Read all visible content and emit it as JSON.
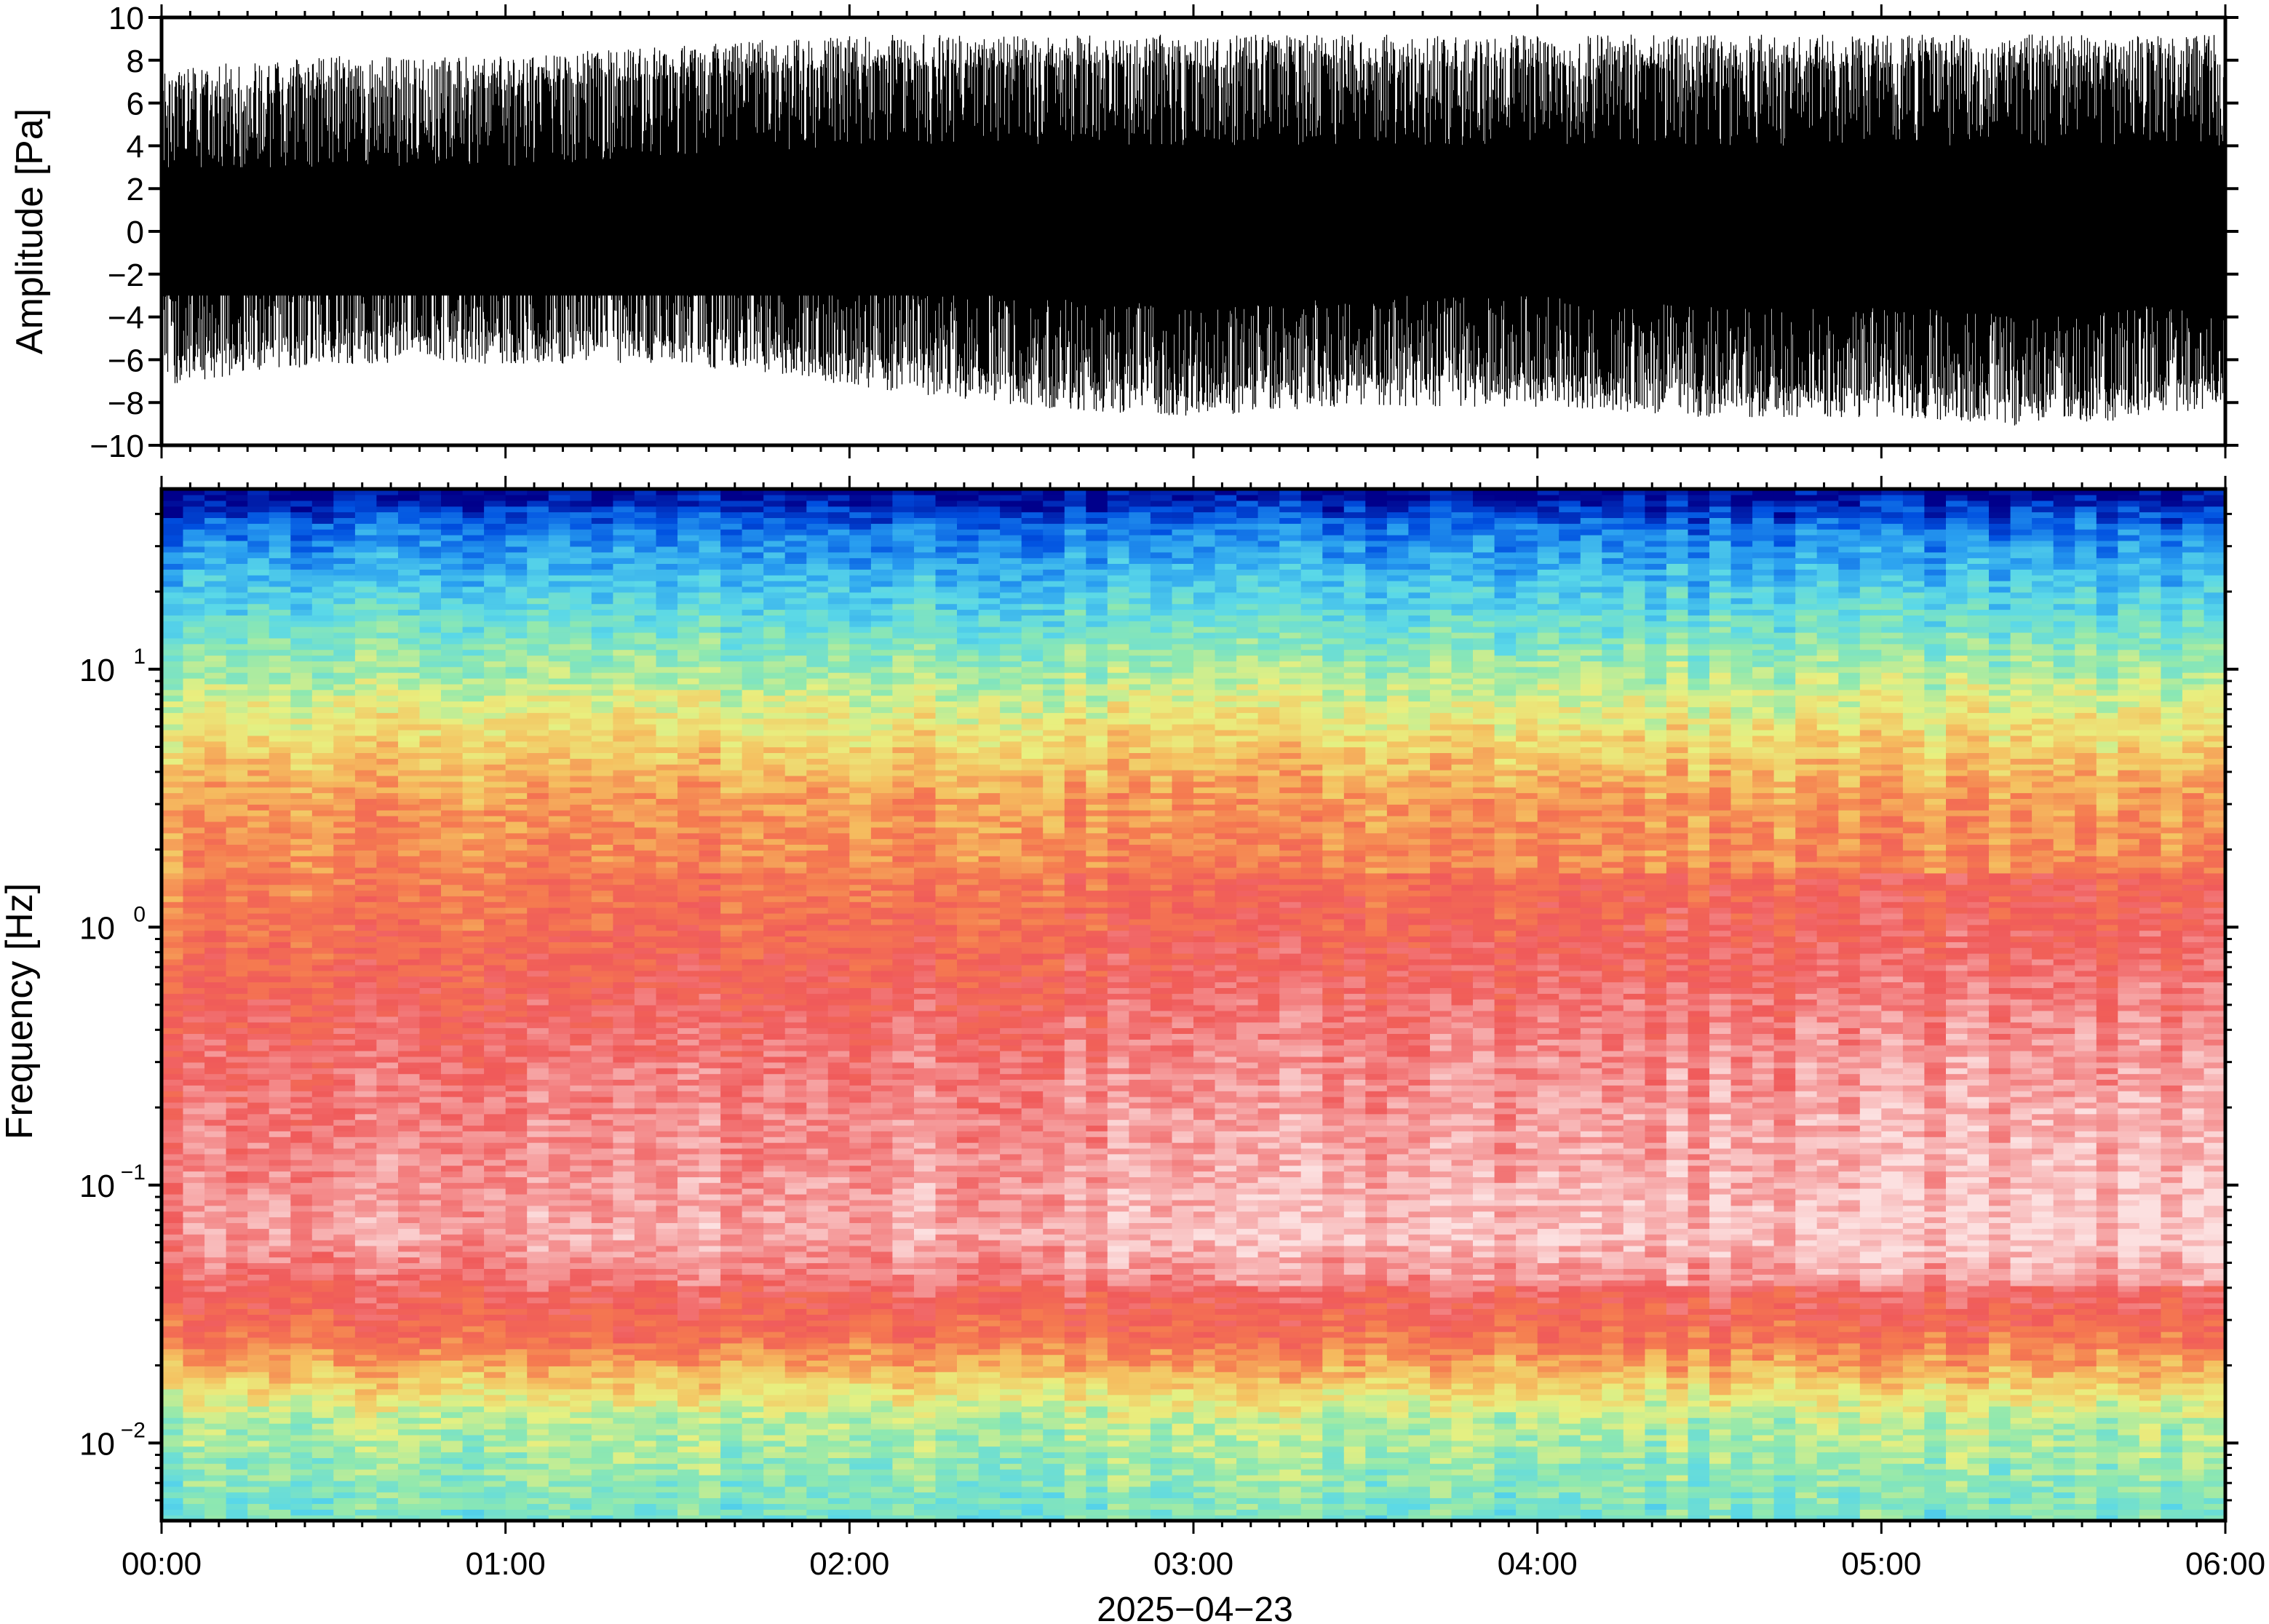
{
  "chart_data": [
    {
      "type": "line",
      "panel": "waveform",
      "ylabel": "Amplitude [Pa]",
      "ylim": [
        -10,
        10
      ],
      "yticks": [
        -10,
        -8,
        -6,
        -4,
        -2,
        0,
        2,
        4,
        6,
        8,
        10
      ],
      "ytick_labels": [
        "−10",
        "−8",
        "−6",
        "−4",
        "−2",
        "0",
        "2",
        "4",
        "6",
        "8",
        "10"
      ],
      "xlim_hours": [
        0,
        6
      ],
      "series": [
        {
          "envelope_upper_hours": [
            0,
            0.5,
            1,
            1.5,
            2,
            2.5,
            3,
            3.5,
            4,
            4.5,
            5,
            5.5,
            6
          ],
          "envelope_upper_pa": [
            8.5,
            9,
            9,
            9.5,
            10,
            10,
            10,
            10,
            10,
            10,
            10,
            10,
            10
          ],
          "envelope_lower_pa": [
            -8,
            -7,
            -7,
            -7,
            -8,
            -9,
            -9.5,
            -9,
            -9,
            -9.5,
            -9.5,
            -10,
            -9
          ]
        }
      ],
      "color": "#000000"
    },
    {
      "type": "heatmap",
      "panel": "spectrogram",
      "ylabel": "Frequency [Hz]",
      "yscale": "log",
      "ylim": [
        0.005,
        50
      ],
      "yticks": [
        0.01,
        0.1,
        1,
        10
      ],
      "ytick_labels": [
        {
          "base": "10",
          "exp": "−2"
        },
        {
          "base": "10",
          "exp": "−1"
        },
        {
          "base": "10",
          "exp": "0"
        },
        {
          "base": "10",
          "exp": "1"
        }
      ],
      "xlabel": "2025−04−23",
      "xticks_hours": [
        0,
        1,
        2,
        3,
        4,
        5,
        6
      ],
      "xtick_labels": [
        "00:00",
        "01:00",
        "02:00",
        "03:00",
        "04:00",
        "05:00",
        "06:00"
      ],
      "colormap": [
        "#00008b",
        "#0050e0",
        "#2aa0f0",
        "#5ad8e8",
        "#8ee8b0",
        "#e8f080",
        "#f5c060",
        "#f57a50",
        "#f05a5a",
        "#f59a9a",
        "#fce0e0"
      ],
      "intensity_profile_log10_hz": [
        {
          "log10_hz": -2.3,
          "level": 0.35
        },
        {
          "log10_hz": -1.9,
          "level": 0.45
        },
        {
          "log10_hz": -1.6,
          "level": 0.72
        },
        {
          "log10_hz": -1.2,
          "level": 0.9
        },
        {
          "log10_hz": -0.5,
          "level": 0.82
        },
        {
          "log10_hz": 0.0,
          "level": 0.72
        },
        {
          "log10_hz": 0.5,
          "level": 0.65
        },
        {
          "log10_hz": 0.8,
          "level": 0.52
        },
        {
          "log10_hz": 1.0,
          "level": 0.42
        },
        {
          "log10_hz": 1.3,
          "level": 0.28
        },
        {
          "log10_hz": 1.55,
          "level": 0.15
        },
        {
          "log10_hz": 1.68,
          "level": 0.0
        }
      ]
    }
  ]
}
